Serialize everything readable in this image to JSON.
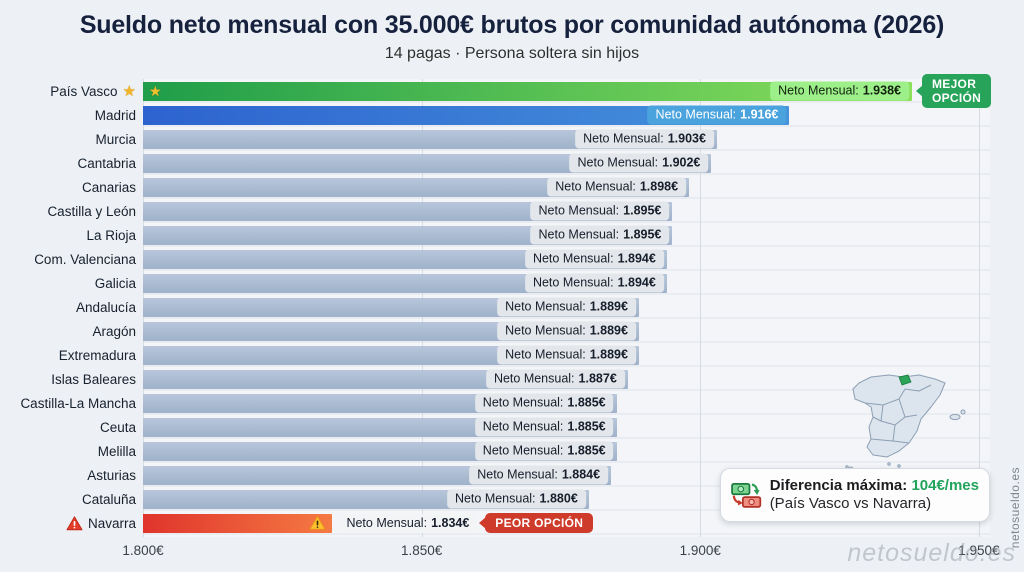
{
  "title": "Sueldo neto mensual con 35.000€ brutos por comunidad autónoma (2026)",
  "subtitle": "14 pagas · Persona soltera sin hijos",
  "badges": {
    "best": "MEJOR OPCIÓN",
    "worst": "PEOR OPCIÓN"
  },
  "value_prefix": "Neto Mensual:",
  "difference_box": {
    "icon": "money-exchange-icon",
    "label": "Diferencia máxima:",
    "value": "104€/mes",
    "note": "(País Vasco vs Navarra)"
  },
  "watermark": "netosueldo.es",
  "side_watermark": "netosueldo.es",
  "chart_data": {
    "type": "bar",
    "orientation": "horizontal",
    "title": "Sueldo neto mensual con 35.000€ brutos por comunidad autónoma (2026)",
    "subtitle": "14 pagas · Persona soltera sin hijos",
    "unit": "€/mes",
    "axis_min": 1800,
    "axis_max": 1952,
    "grid": true,
    "ticks": [
      {
        "label": "1.800€",
        "value": 1800
      },
      {
        "label": "1.850€",
        "value": 1850
      },
      {
        "label": "1.900€",
        "value": 1900
      },
      {
        "label": "1.950€",
        "value": 1950
      }
    ],
    "rows": [
      {
        "name": "País Vasco",
        "value": 1938,
        "label": "1.938€",
        "type": "best"
      },
      {
        "name": "Madrid",
        "value": 1916,
        "label": "1.916€",
        "type": "highlight"
      },
      {
        "name": "Murcia",
        "value": 1903,
        "label": "1.903€",
        "type": "normal"
      },
      {
        "name": "Cantabria",
        "value": 1902,
        "label": "1.902€",
        "type": "normal"
      },
      {
        "name": "Canarias",
        "value": 1898,
        "label": "1.898€",
        "type": "normal"
      },
      {
        "name": "Castilla y León",
        "value": 1895,
        "label": "1.895€",
        "type": "normal"
      },
      {
        "name": "La Rioja",
        "value": 1895,
        "label": "1.895€",
        "type": "normal"
      },
      {
        "name": "Com. Valenciana",
        "value": 1894,
        "label": "1.894€",
        "type": "normal"
      },
      {
        "name": "Galicia",
        "value": 1894,
        "label": "1.894€",
        "type": "normal"
      },
      {
        "name": "Andalucía",
        "value": 1889,
        "label": "1.889€",
        "type": "normal"
      },
      {
        "name": "Aragón",
        "value": 1889,
        "label": "1.889€",
        "type": "normal"
      },
      {
        "name": "Extremadura",
        "value": 1889,
        "label": "1.889€",
        "type": "normal"
      },
      {
        "name": "Islas Baleares",
        "value": 1887,
        "label": "1.887€",
        "type": "normal"
      },
      {
        "name": "Castilla-La Mancha",
        "value": 1885,
        "label": "1.885€",
        "type": "normal"
      },
      {
        "name": "Ceuta",
        "value": 1885,
        "label": "1.885€",
        "type": "normal"
      },
      {
        "name": "Melilla",
        "value": 1885,
        "label": "1.885€",
        "type": "normal"
      },
      {
        "name": "Asturias",
        "value": 1884,
        "label": "1.884€",
        "type": "normal"
      },
      {
        "name": "Cataluña",
        "value": 1880,
        "label": "1.880€",
        "type": "normal"
      },
      {
        "name": "Navarra",
        "value": 1834,
        "label": "1.834€",
        "type": "worst"
      }
    ]
  },
  "colors": {
    "title_color": "#16213e",
    "best_green": "#27a35a",
    "best_bar_start": "#1f9d4a",
    "best_bar_end": "#8ce05c",
    "best_pill_bg": "#9df089",
    "highlight_bar_start": "#2d63cf",
    "highlight_bar_end": "#4693dc",
    "highlight_pill_bg": "#4aa3dd",
    "bar_default_start": "#b7c6da",
    "bar_default_end": "#9fb3ca",
    "pill_bg": "#e3e6ea",
    "worst_bar_start": "#e0342c",
    "worst_bar_end": "#f57a43",
    "worst_red": "#cf3b2b",
    "diff_green": "#22a35c",
    "map_fill": "#dce4ed",
    "map_stroke": "#8d9fb4"
  }
}
